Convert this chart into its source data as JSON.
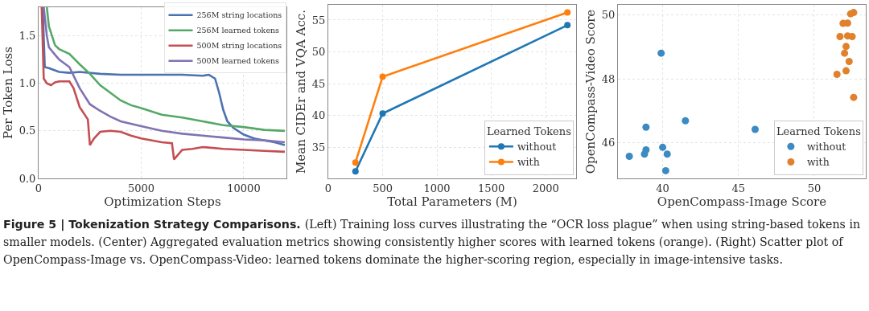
{
  "chart_data": [
    {
      "type": "line",
      "xlabel": "Optimization Steps",
      "ylabel": "Per Token Loss",
      "xlim": [
        0,
        12080
      ],
      "xticks": [
        0,
        5000,
        10000
      ],
      "ylim": [
        0,
        1.8
      ],
      "yticks": [
        {
          "value": 0,
          "label": "0.0"
        },
        0.5,
        {
          "value": 1,
          "label": "1.0"
        },
        1.5
      ],
      "grid": true,
      "legend": "top right",
      "line_style": "solid",
      "marker": "none",
      "series": [
        {
          "name": "256M string locations",
          "color": "#4c72b0",
          "x": [
            200,
            300,
            500,
            1000,
            1500,
            2000,
            3000,
            4000,
            5000,
            6000,
            7000,
            8000,
            8300,
            8600,
            8800,
            9000,
            9200,
            9500,
            10000,
            10500,
            11000,
            11500,
            12000
          ],
          "values": [
            1.8,
            1.17,
            1.16,
            1.12,
            1.11,
            1.12,
            1.1,
            1.09,
            1.09,
            1.09,
            1.09,
            1.08,
            1.09,
            1.05,
            0.9,
            0.72,
            0.6,
            0.53,
            0.46,
            0.42,
            0.4,
            0.38,
            0.35
          ]
        },
        {
          "name": "256M learned tokens",
          "color": "#55a868",
          "x": [
            400,
            500,
            800,
            1000,
            1500,
            2000,
            2500,
            3000,
            3500,
            4000,
            4500,
            5000,
            6000,
            7000,
            8000,
            9000,
            10000,
            11000,
            12000
          ],
          "values": [
            1.8,
            1.6,
            1.4,
            1.36,
            1.31,
            1.2,
            1.1,
            0.98,
            0.9,
            0.82,
            0.77,
            0.74,
            0.67,
            0.64,
            0.6,
            0.56,
            0.54,
            0.51,
            0.5
          ]
        },
        {
          "name": "500M string locations",
          "color": "#c44e52",
          "x": [
            150,
            250,
            400,
            600,
            800,
            1000,
            1500,
            1700,
            2000,
            2400,
            2500,
            2700,
            3000,
            3500,
            4000,
            4500,
            5000,
            6000,
            6500,
            6600,
            6800,
            7000,
            7500,
            8000,
            9000,
            10000,
            11000,
            12000
          ],
          "values": [
            1.8,
            1.05,
            1.0,
            0.98,
            1.01,
            1.02,
            1.02,
            0.95,
            0.75,
            0.62,
            0.35,
            0.42,
            0.49,
            0.5,
            0.49,
            0.45,
            0.42,
            0.38,
            0.37,
            0.2,
            0.25,
            0.3,
            0.31,
            0.33,
            0.31,
            0.3,
            0.29,
            0.28
          ]
        },
        {
          "name": "500M learned tokens",
          "color": "#8172b3",
          "x": [
            250,
            400,
            500,
            800,
            1000,
            1500,
            2000,
            2500,
            3000,
            3500,
            4000,
            5000,
            6000,
            7000,
            8000,
            9000,
            10000,
            11000,
            12000
          ],
          "values": [
            1.8,
            1.5,
            1.38,
            1.3,
            1.25,
            1.17,
            0.95,
            0.78,
            0.71,
            0.65,
            0.6,
            0.55,
            0.5,
            0.47,
            0.45,
            0.43,
            0.41,
            0.4,
            0.38
          ]
        }
      ],
      "annotations": [
        "Figure 5 | Tokenization Strategy Comparisons.",
        "(Left) Training loss curves illustrating the “OCR loss plague” when using string-based tokens in smaller models. (Center) Aggregated evaluation metrics showing consistently higher scores with learned tokens (orange). (Right) Scatter plot of OpenCompass-Image vs. OpenCompass-Video: learned tokens dominate the higher-scoring region, especially in image-intensive tasks."
      ]
    },
    {
      "type": "line",
      "xlabel": "Total Parameters (M)",
      "ylabel": "Mean CIDEr and VQA Acc.",
      "x": [
        250,
        500,
        2200
      ],
      "xlim": [
        0,
        2280
      ],
      "xticks": [
        0,
        500,
        1000,
        1500,
        2000
      ],
      "ylim": [
        30.1,
        57.4
      ],
      "yticks": [
        35,
        40,
        45,
        50,
        55
      ],
      "grid": true,
      "legend": "bottom right",
      "legend_title": "Learned Tokens",
      "line_style": "solid",
      "marker": "circle",
      "series": [
        {
          "name": "without",
          "color": "#1f77b4",
          "values": [
            31.2,
            40.3,
            54.2
          ]
        },
        {
          "name": "with",
          "color": "#ff7f0e",
          "values": [
            32.6,
            46.1,
            56.2
          ]
        }
      ]
    },
    {
      "type": "scatter",
      "xlabel": "OpenCompass-Image Score",
      "ylabel": "OpenCompass-Video Score",
      "xlim": [
        37.05,
        53.4
      ],
      "xticks": [
        40,
        45,
        50
      ],
      "ylim": [
        44.89,
        50.31
      ],
      "yticks": [
        46,
        48,
        50
      ],
      "grid": true,
      "legend": "bottom right",
      "legend_title": "Learned Tokens",
      "marker": "circle",
      "series": [
        {
          "name": "without",
          "color": "#3b8bc2",
          "x": [
            37.8,
            38.8,
            38.9,
            38.9,
            39.9,
            40.0,
            40.3,
            40.2,
            41.5,
            46.1
          ],
          "values": [
            45.58,
            45.65,
            45.78,
            46.49,
            48.8,
            45.86,
            45.65,
            45.13,
            46.69,
            46.42
          ]
        },
        {
          "name": "with",
          "color": "#e1812c",
          "x": [
            51.5,
            51.7,
            51.9,
            52.0,
            52.1,
            52.1,
            52.2,
            52.2,
            52.3,
            52.4,
            52.5,
            52.6,
            52.6
          ],
          "values": [
            48.14,
            49.32,
            49.73,
            48.8,
            49.01,
            48.25,
            49.74,
            49.34,
            48.54,
            50.03,
            49.32,
            50.07,
            47.42
          ]
        }
      ]
    }
  ]
}
